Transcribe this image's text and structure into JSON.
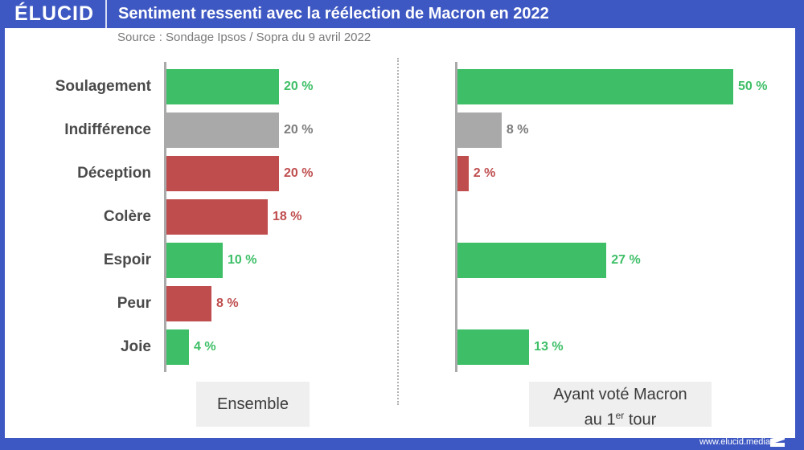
{
  "header": {
    "logo": "ÉLUCID",
    "title": "Sentiment ressenti avec la réélection de Macron en 2022",
    "subtitle": "Source : Sondage Ipsos / Sopra du 9 avril 2022"
  },
  "footer": {
    "url": "www.elucid.media"
  },
  "colors": {
    "brand": "#3e58c3",
    "positive": "#3ebf67",
    "neutral": "#a9a9a9",
    "negative": "#bf4d4e"
  },
  "chart_data": [
    {
      "type": "bar",
      "orientation": "horizontal",
      "title": "Ensemble",
      "categories": [
        "Soulagement",
        "Indifférence",
        "Déception",
        "Colère",
        "Espoir",
        "Peur",
        "Joie"
      ],
      "values": [
        20,
        20,
        20,
        18,
        10,
        8,
        4
      ],
      "value_labels": [
        "20 %",
        "20 %",
        "20 %",
        "18 %",
        "10 %",
        "8 %",
        "4 %"
      ],
      "sentiment": [
        "positive",
        "neutral",
        "negative",
        "negative",
        "positive",
        "negative",
        "positive"
      ],
      "unit": "%",
      "grid": false
    },
    {
      "type": "bar",
      "orientation": "horizontal",
      "title_line1": "Ayant voté Macron",
      "title_line2_prefix": "au 1",
      "title_line2_sup": "er",
      "title_line2_suffix": " tour",
      "categories": [
        "Soulagement",
        "Indifférence",
        "Déception",
        "Colère",
        "Espoir",
        "Peur",
        "Joie"
      ],
      "values": [
        50,
        8,
        2,
        null,
        27,
        null,
        13
      ],
      "value_labels": [
        "50 %",
        "8 %",
        "2 %",
        "",
        "27 %",
        "",
        "13 %"
      ],
      "sentiment": [
        "positive",
        "neutral",
        "negative",
        "negative",
        "positive",
        "negative",
        "positive"
      ],
      "unit": "%",
      "grid": false
    }
  ]
}
